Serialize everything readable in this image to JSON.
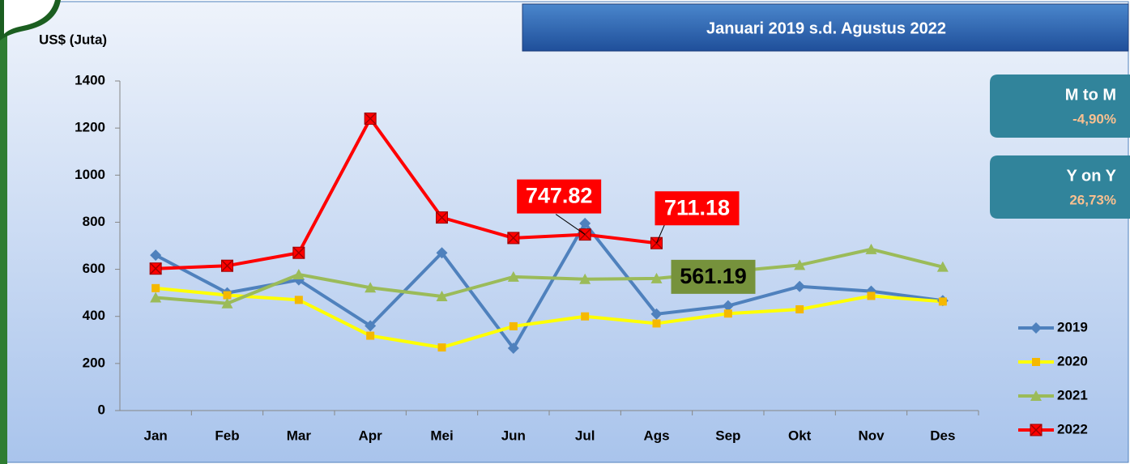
{
  "chart_data": {
    "type": "line",
    "subtitle": "Januari 2019 s.d. Agustus 2022",
    "y_label": "US$ (Juta)",
    "categories": [
      "Jan",
      "Feb",
      "Mar",
      "Apr",
      "Mei",
      "Jun",
      "Jul",
      "Ags",
      "Sep",
      "Okt",
      "Nov",
      "Des"
    ],
    "ylim": [
      0,
      1400
    ],
    "yticks": [
      0,
      200,
      400,
      600,
      800,
      1000,
      1200,
      1400
    ],
    "grid": false,
    "legend": "lower right",
    "series": [
      {
        "name": "2019",
        "color": "#4f81bd",
        "marker": "diamond",
        "marker_color": "#4f81bd",
        "values": [
          660,
          500,
          555,
          360,
          670,
          265,
          795,
          410,
          445,
          527,
          507,
          467
        ]
      },
      {
        "name": "2020",
        "color": "#ffff00",
        "marker": "square",
        "marker_color": "#f5b800",
        "values": [
          520,
          490,
          470,
          318,
          268,
          358,
          400,
          370,
          412,
          430,
          487,
          463
        ]
      },
      {
        "name": "2021",
        "color": "#9bbb59",
        "marker": "triangle",
        "marker_color": "#9bbb59",
        "values": [
          480,
          455,
          578,
          522,
          485,
          568,
          558,
          561.19,
          590,
          618,
          685,
          610
        ],
        "value_labels": [
          null,
          null,
          null,
          null,
          null,
          null,
          null,
          "561.19",
          null,
          null,
          null,
          null
        ],
        "label_color": "#76923c",
        "label_text_color": "#000000"
      },
      {
        "name": "2022",
        "color": "#ff0000",
        "marker": "xsquare",
        "marker_color": "#ff0000",
        "values": [
          603,
          615,
          670,
          1240,
          820,
          733,
          747.82,
          711.18,
          null,
          null,
          null,
          null
        ],
        "value_labels": [
          null,
          null,
          null,
          null,
          null,
          null,
          "747.82",
          "711.18",
          null,
          null,
          null,
          null
        ],
        "label_color": "#ff0000",
        "label_text_color": "#ffffff"
      }
    ],
    "panels": [
      {
        "title": "M to M",
        "value": "-4,90%"
      },
      {
        "title": "Y on Y",
        "value": "26,73%"
      }
    ]
  }
}
